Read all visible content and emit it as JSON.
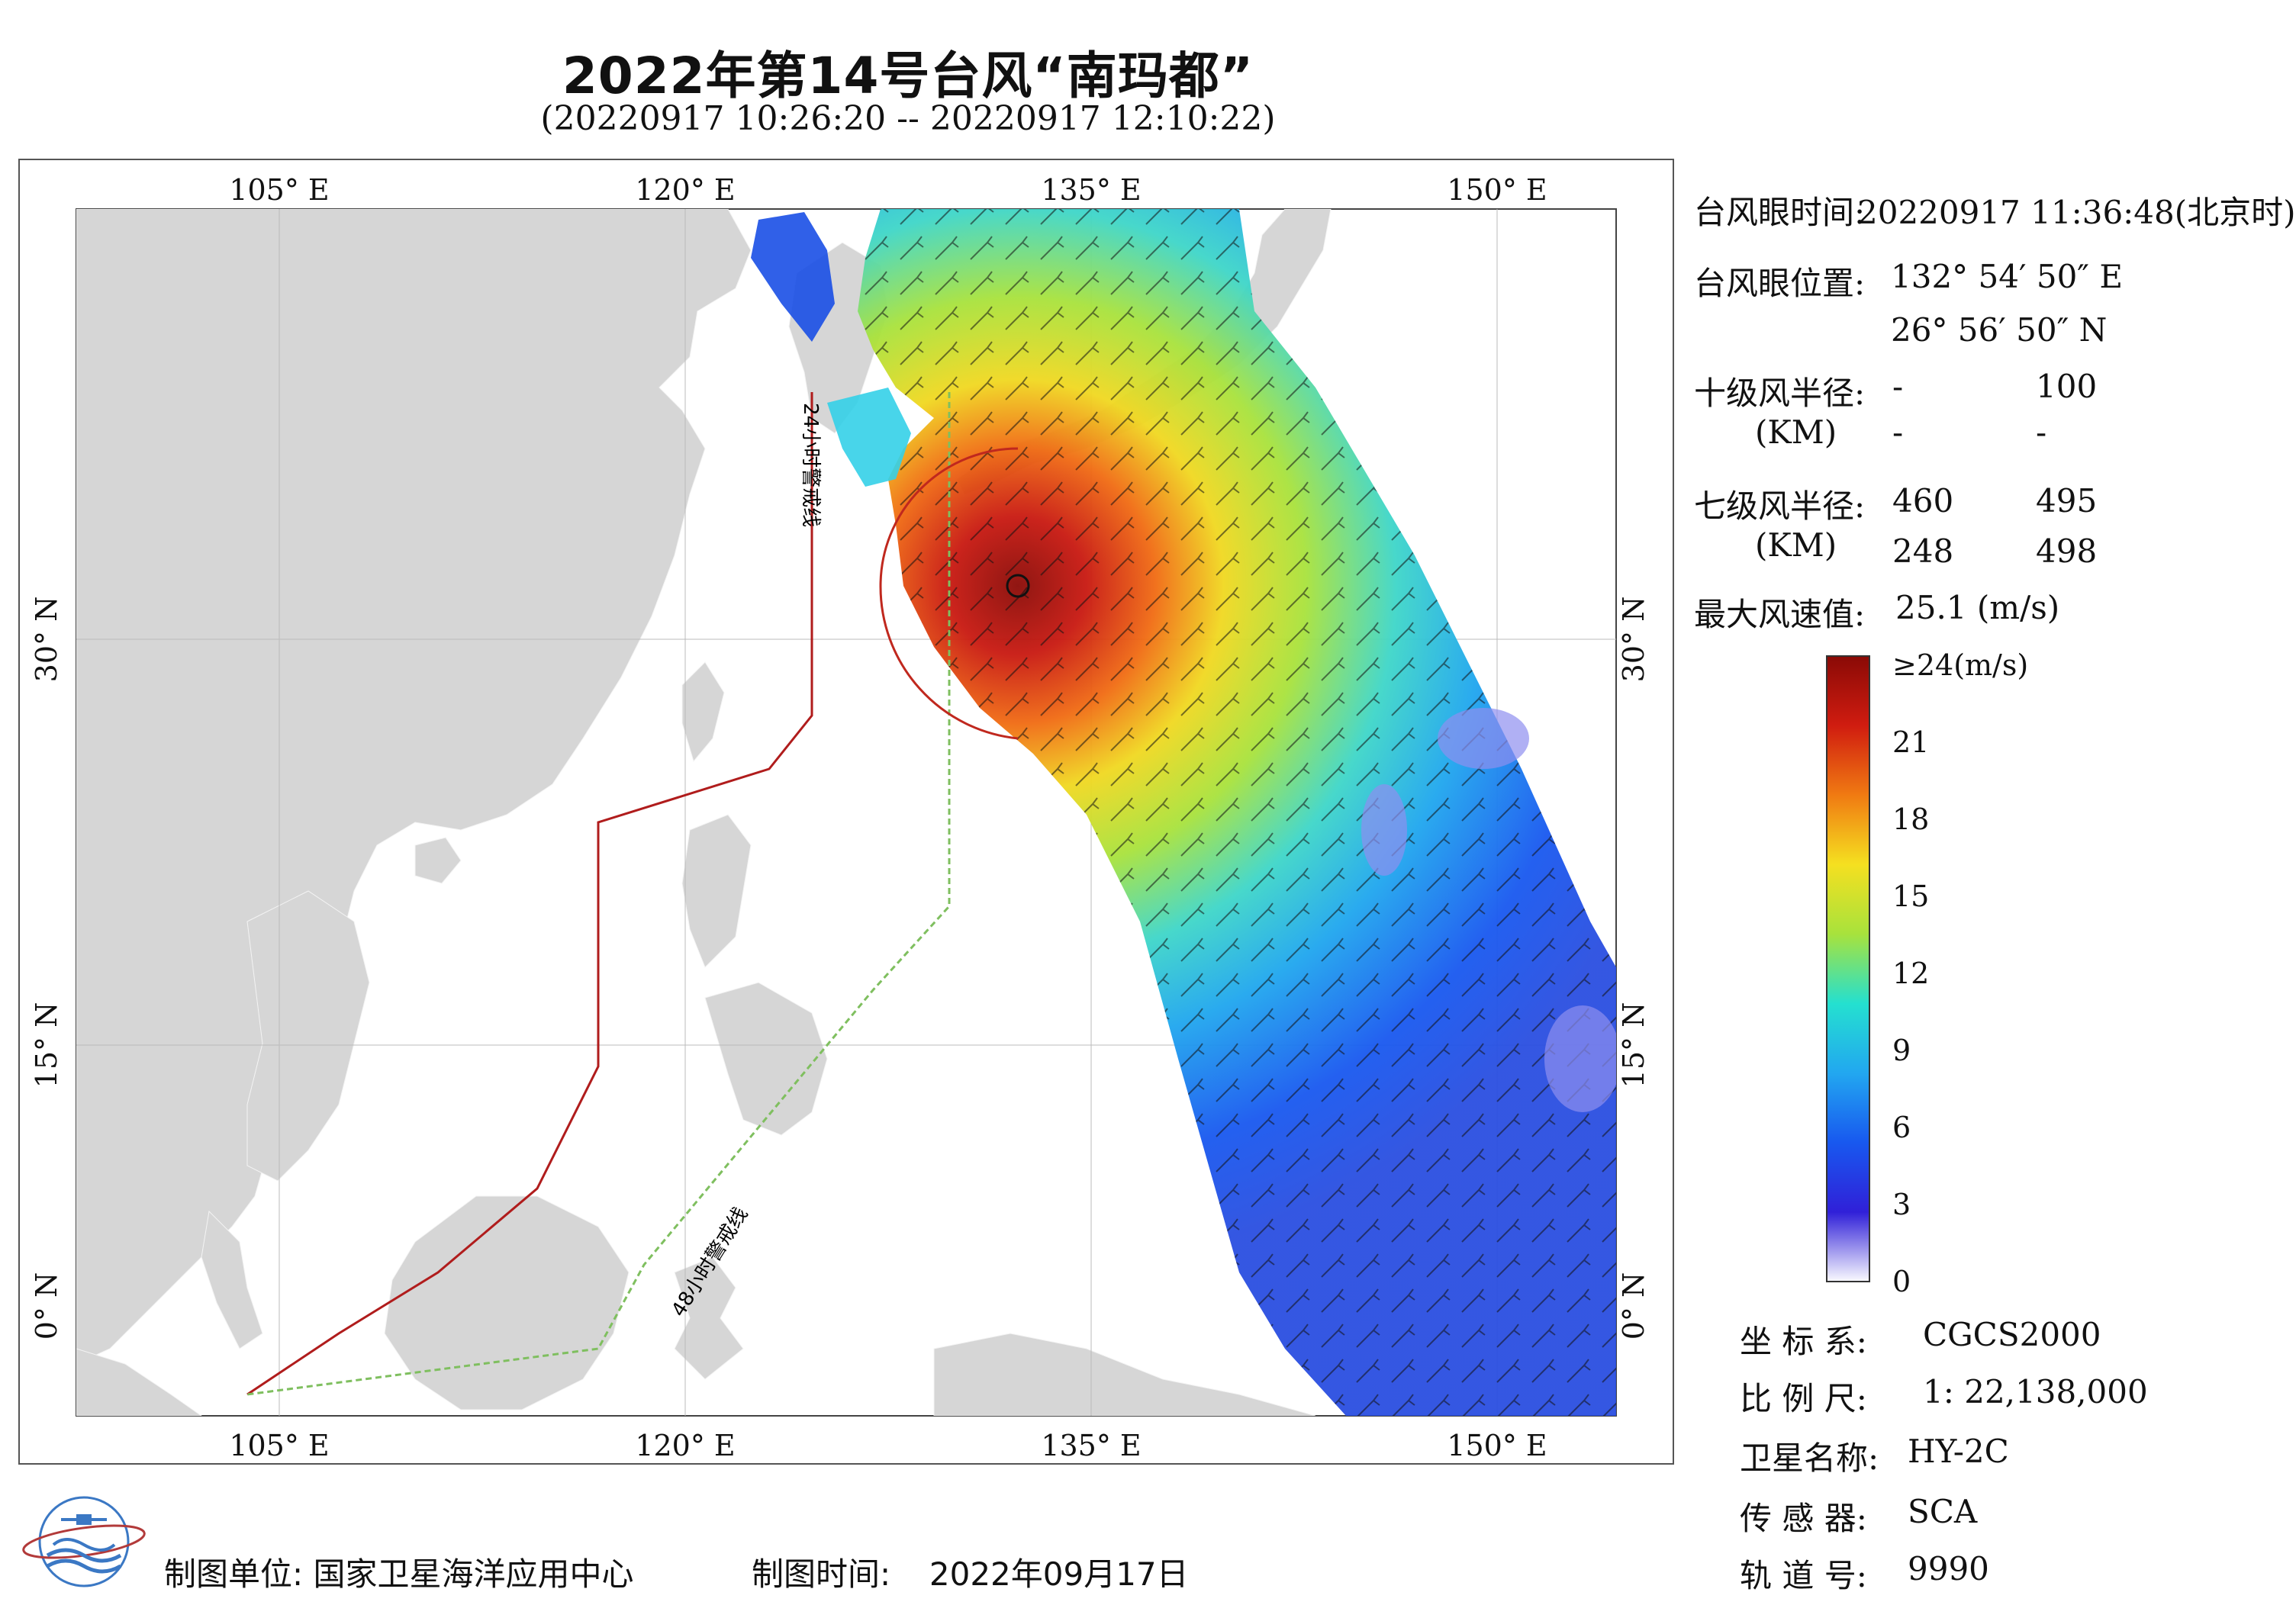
{
  "title": "2022年第14号台风“南玛都”",
  "subtitle": "(20220917 10:26:20 -- 20220917 12:10:22)",
  "map": {
    "lon_ticks": [
      "105° E",
      "120° E",
      "135° E",
      "150° E"
    ],
    "lat_ticks": [
      "30° N",
      "15° N",
      "0° N"
    ],
    "warn_24h_label": "24小时警戒线",
    "warn_48h_label": "48小时警戒线",
    "colors": {
      "land": "#d6d6d6",
      "sea": "#ffffff",
      "warn_24h": "#b01c1c",
      "warn_48h": "#7fbf5f",
      "grid": "#bbbbbb"
    }
  },
  "info": {
    "eye_time_label": "台风眼时间:",
    "eye_time_value": "20220917 11:36:48(北京时)",
    "eye_pos_label": "台风眼位置:",
    "eye_lon": "132° 54′ 50″ E",
    "eye_lat": "26° 56′ 50″ N",
    "r10_label": "十级风半径:",
    "r10_unit": "(KM)",
    "r10_values": [
      "-",
      "100",
      "-",
      "-"
    ],
    "r7_label": "七级风半径:",
    "r7_unit": "(KM)",
    "r7_values": [
      "460",
      "495",
      "248",
      "498"
    ],
    "max_wind_label": "最大风速值:",
    "max_wind_value": "25.1  (m/s)"
  },
  "colorbar": {
    "labels": [
      "≥24(m/s)",
      "21",
      "18",
      "15",
      "12",
      "9",
      "6",
      "3",
      "0"
    ],
    "stops": [
      "#fafaff",
      "#3020d8",
      "#1858ef",
      "#22a7f0",
      "#24e0d0",
      "#a8e23c",
      "#f5e020",
      "#f07a12",
      "#d01c10",
      "#8a0a06"
    ]
  },
  "meta": {
    "coord_label": "坐 标 系:",
    "coord_value": "CGCS2000",
    "scale_label": "比 例 尺:",
    "scale_value": "1: 22,138,000",
    "sat_label": "卫星名称:",
    "sat_value": "HY-2C",
    "sensor_label": "传 感 器:",
    "sensor_value": "SCA",
    "orbit_label": "轨 道 号:",
    "orbit_value": "9990"
  },
  "footer": {
    "unit_label": "制图单位:",
    "unit_value": "国家卫星海洋应用中心",
    "time_label": "制图时间:",
    "time_value": "2022年09月17日"
  }
}
